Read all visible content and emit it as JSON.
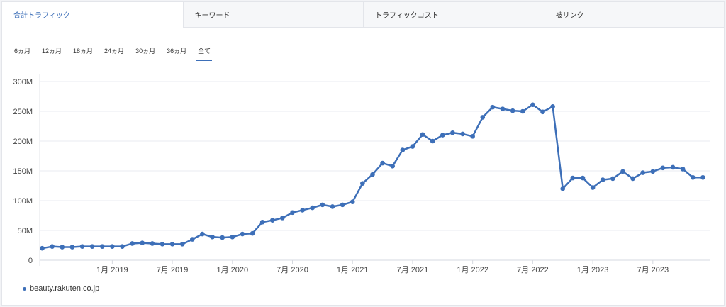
{
  "tabs": [
    {
      "label": "合計トラフィック",
      "active": true
    },
    {
      "label": "キーワード",
      "active": false
    },
    {
      "label": "トラフィックコスト",
      "active": false
    },
    {
      "label": "被リンク",
      "active": false
    }
  ],
  "ranges": [
    {
      "label": "6ヵ月",
      "active": false
    },
    {
      "label": "12ヵ月",
      "active": false
    },
    {
      "label": "18ヵ月",
      "active": false
    },
    {
      "label": "24ヵ月",
      "active": false
    },
    {
      "label": "30ヵ月",
      "active": false
    },
    {
      "label": "36ヵ月",
      "active": false
    },
    {
      "label": "全て",
      "active": true
    }
  ],
  "colors": {
    "series": "#3d6fb8",
    "accent": "#3d6fb8",
    "grid": "#e9ebf0"
  },
  "chart_data": {
    "type": "line",
    "title": "",
    "xlabel": "",
    "ylabel": "",
    "ylim": [
      0,
      300
    ],
    "y_unit": "M",
    "ytick_values": [
      0,
      50,
      100,
      150,
      200,
      250,
      300
    ],
    "ytick_labels": [
      "0",
      "50M",
      "100M",
      "150M",
      "200M",
      "250M",
      "300M"
    ],
    "xtick_values": [
      "2019-01",
      "2019-07",
      "2020-01",
      "2020-07",
      "2021-01",
      "2021-07",
      "2022-01",
      "2022-07",
      "2023-01",
      "2023-07"
    ],
    "xtick_labels": [
      "1月 2019",
      "7月 2019",
      "1月 2020",
      "7月 2020",
      "1月 2021",
      "7月 2021",
      "1月 2022",
      "7月 2022",
      "1月 2023",
      "7月 2023"
    ],
    "x_start": "2018-06",
    "x_end": "2023-12",
    "grid": true,
    "legend_position": "bottom-left",
    "series": [
      {
        "name": "beauty.rakuten.co.jp",
        "x": [
          "2018-06",
          "2018-07",
          "2018-08",
          "2018-09",
          "2018-10",
          "2018-11",
          "2018-12",
          "2019-01",
          "2019-02",
          "2019-03",
          "2019-04",
          "2019-05",
          "2019-06",
          "2019-07",
          "2019-08",
          "2019-09",
          "2019-10",
          "2019-11",
          "2019-12",
          "2020-01",
          "2020-02",
          "2020-03",
          "2020-04",
          "2020-05",
          "2020-06",
          "2020-07",
          "2020-08",
          "2020-09",
          "2020-10",
          "2020-11",
          "2020-12",
          "2021-01",
          "2021-02",
          "2021-03",
          "2021-04",
          "2021-05",
          "2021-06",
          "2021-07",
          "2021-08",
          "2021-09",
          "2021-10",
          "2021-11",
          "2021-12",
          "2022-01",
          "2022-02",
          "2022-03",
          "2022-04",
          "2022-05",
          "2022-06",
          "2022-07",
          "2022-08",
          "2022-09",
          "2022-10",
          "2022-11",
          "2022-12",
          "2023-01",
          "2023-02",
          "2023-03",
          "2023-04",
          "2023-05",
          "2023-06",
          "2023-07",
          "2023-08",
          "2023-09",
          "2023-10",
          "2023-11",
          "2023-12"
        ],
        "values": [
          20,
          23,
          22,
          22,
          23,
          23,
          23,
          23,
          23,
          28,
          29,
          28,
          27,
          27,
          27,
          35,
          44,
          39,
          38,
          39,
          44,
          45,
          64,
          67,
          71,
          80,
          84,
          88,
          93,
          90,
          93,
          98,
          129,
          144,
          163,
          158,
          185,
          191,
          211,
          200,
          210,
          214,
          212,
          208,
          240,
          257,
          254,
          251,
          250,
          261,
          249,
          258,
          120,
          138,
          138,
          122,
          135,
          137,
          149,
          137,
          147,
          149,
          155,
          156,
          153,
          139,
          139
        ]
      }
    ]
  }
}
